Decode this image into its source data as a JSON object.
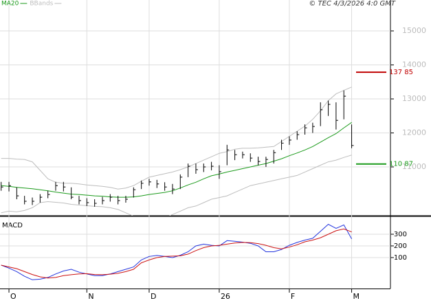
{
  "chart_data": [
    {
      "type": "ohlc",
      "credit": "© TEC 4/3/2026 4:0 GMT",
      "categories": [
        null,
        "O",
        null,
        null,
        null,
        null,
        null,
        null,
        null,
        null,
        null,
        "N",
        null,
        null,
        null,
        null,
        null,
        null,
        null,
        "D",
        null,
        null,
        null,
        null,
        null,
        null,
        null,
        null,
        "26",
        null,
        null,
        null,
        null,
        null,
        null,
        null,
        null,
        "F",
        null,
        null,
        null,
        null,
        null,
        null,
        null,
        "M"
      ],
      "high": [
        10560,
        10560,
        10400,
        10150,
        10100,
        10200,
        10300,
        10560,
        10560,
        10400,
        10150,
        10080,
        10050,
        10120,
        10200,
        10150,
        10150,
        10400,
        10600,
        10650,
        10620,
        10550,
        10500,
        10780,
        11100,
        11100,
        11100,
        11150,
        11050,
        11650,
        11500,
        11450,
        11400,
        11300,
        11300,
        11500,
        11800,
        11900,
        12050,
        12250,
        12300,
        12900,
        12950,
        12900,
        13250,
        12250
      ],
      "low": [
        10300,
        10280,
        10050,
        9900,
        9880,
        9950,
        10080,
        10300,
        10280,
        10050,
        9900,
        9850,
        9830,
        9900,
        9980,
        9900,
        9950,
        10100,
        10350,
        10450,
        10380,
        10300,
        10200,
        10350,
        10700,
        10800,
        10850,
        10900,
        10650,
        11050,
        11200,
        11250,
        11150,
        11050,
        11000,
        11100,
        11500,
        11650,
        11800,
        11950,
        12000,
        12200,
        12500,
        12100,
        12400,
        11550
      ],
      "close": [
        10410,
        10450,
        10150,
        9990,
        9990,
        10110,
        10190,
        10450,
        10410,
        10110,
        10010,
        9950,
        9930,
        10010,
        10110,
        10010,
        10050,
        10330,
        10520,
        10560,
        10500,
        10410,
        10350,
        10700,
        11020,
        10920,
        11000,
        11020,
        10860,
        11500,
        11360,
        11360,
        11260,
        11160,
        11220,
        11420,
        11700,
        11790,
        11950,
        12150,
        12190,
        12680,
        12840,
        12370,
        13080,
        11630
      ],
      "color": "#000000",
      "series": [
        {
          "name": "MA20",
          "color": "#1a9a1a",
          "values": [
            10450,
            10430,
            10400,
            10380,
            10360,
            10330,
            10300,
            10260,
            10230,
            10200,
            10190,
            10170,
            10150,
            10140,
            10120,
            10110,
            10110,
            10120,
            10150,
            10190,
            10220,
            10250,
            10300,
            10380,
            10470,
            10550,
            10650,
            10740,
            10790,
            10850,
            10900,
            10950,
            11000,
            11050,
            11100,
            11170,
            11240,
            11330,
            11410,
            11500,
            11600,
            11730,
            11860,
            11980,
            12150,
            12310
          ]
        }
      ],
      "bands": {
        "name": "BBands",
        "color": "#bdbdbd",
        "upper": [
          11250,
          11250,
          11230,
          11220,
          11150,
          10900,
          10650,
          10550,
          10520,
          10520,
          10500,
          10470,
          10450,
          10430,
          10400,
          10350,
          10380,
          10450,
          10580,
          10700,
          10750,
          10800,
          10850,
          10920,
          11000,
          11100,
          11200,
          11300,
          11400,
          11450,
          11520,
          11550,
          11550,
          11560,
          11580,
          11600,
          11750,
          11900,
          12050,
          12200,
          12400,
          12650,
          12950,
          13150,
          13250,
          13350
        ],
        "lower": [
          9650,
          9700,
          9680,
          9720,
          9800,
          9950,
          9980,
          9960,
          9940,
          9900,
          9880,
          9860,
          9840,
          9830,
          9800,
          9750,
          9650,
          9550,
          9480,
          9420,
          9420,
          9500,
          9600,
          9700,
          9800,
          9850,
          9950,
          10050,
          10100,
          10150,
          10250,
          10350,
          10450,
          10500,
          10550,
          10600,
          10650,
          10700,
          10750,
          10850,
          10950,
          11050,
          11150,
          11200,
          11280,
          11350
        ]
      },
      "levels": [
        {
          "value": 13785,
          "label": "137 85",
          "color": "#c00000"
        },
        {
          "value": 11087,
          "label": "110 87",
          "color": "#1a9a1a"
        }
      ],
      "ylim": [
        9566,
        15909
      ],
      "yticks": [
        11000,
        12000,
        13000,
        14000,
        15000
      ],
      "grid": true
    },
    {
      "type": "macd",
      "title": "MACD",
      "series": [
        {
          "color": "#2233dd",
          "values": [
            35,
            10,
            -20,
            -60,
            -90,
            -85,
            -70,
            -40,
            -15,
            0,
            -25,
            -40,
            -55,
            -55,
            -40,
            -20,
            0,
            20,
            80,
            110,
            118,
            110,
            100,
            120,
            150,
            200,
            215,
            205,
            200,
            245,
            240,
            232,
            222,
            200,
            150,
            150,
            170,
            205,
            230,
            250,
            265,
            325,
            385,
            350,
            380,
            260
          ]
        },
        {
          "color": "#cc1111",
          "values": [
            35,
            20,
            5,
            -20,
            -45,
            -65,
            -75,
            -70,
            -55,
            -47,
            -40,
            -38,
            -45,
            -47,
            -42,
            -35,
            -20,
            0,
            55,
            80,
            100,
            110,
            112,
            115,
            130,
            160,
            185,
            200,
            205,
            215,
            225,
            230,
            228,
            220,
            205,
            185,
            175,
            190,
            210,
            235,
            250,
            270,
            300,
            330,
            345,
            320
          ]
        }
      ],
      "ylim": [
        -165,
        447
      ],
      "yticks": [
        100,
        200,
        300
      ],
      "grid": true
    }
  ]
}
